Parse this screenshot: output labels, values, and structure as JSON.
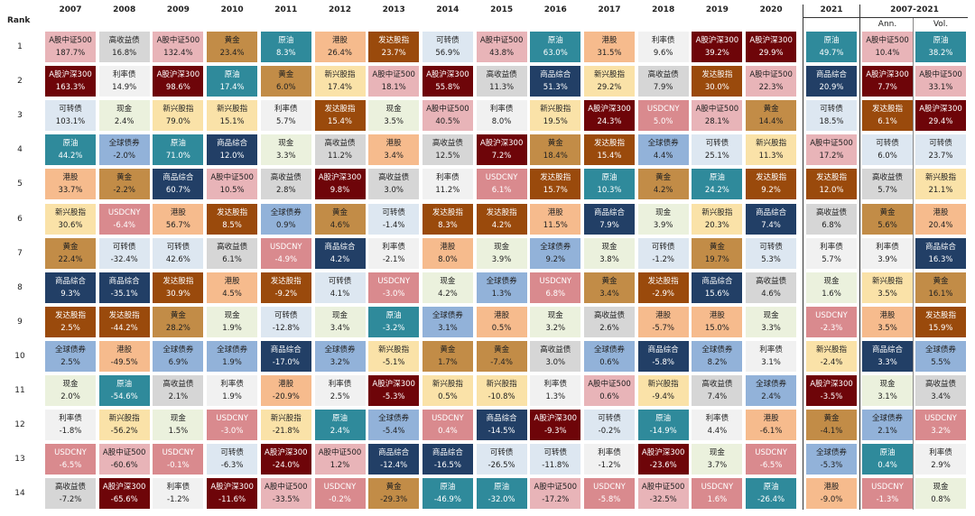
{
  "rank_label": "Rank",
  "group_label": "2007-2021",
  "ranks": [
    "1",
    "2",
    "3",
    "4",
    "5",
    "6",
    "7",
    "8",
    "9",
    "10",
    "11",
    "12",
    "13",
    "14"
  ],
  "colors": {
    "A股中证500": "#e8b4b8",
    "A股沪深300": "#6e0509",
    "可转债": "#dde7f1",
    "原油": "#2f8a9b",
    "港股": "#f6bb8d",
    "新兴股指": "#fae2a8",
    "黄金": "#c28c47",
    "商品综合": "#223f66",
    "发达股指": "#9a4a0c",
    "全球债券": "#92b2d9",
    "现金": "#ebf1dd",
    "利率债": "#f1f1f1",
    "USDCNY": "#d98a8e",
    "高收益债": "#d6d6d6"
  },
  "dark": [
    "A股沪深300",
    "原油",
    "商品综合",
    "发达股指",
    "USDCNY"
  ],
  "table": {
    "columns": [
      {
        "label": "2007",
        "cells": [
          [
            "A股中证500",
            "187.7%"
          ],
          [
            "A股沪深300",
            "163.3%"
          ],
          [
            "可转债",
            "103.1%"
          ],
          [
            "原油",
            "44.2%"
          ],
          [
            "港股",
            "33.7%"
          ],
          [
            "新兴股指",
            "30.6%"
          ],
          [
            "黄金",
            "22.4%"
          ],
          [
            "商品综合",
            "9.3%"
          ],
          [
            "发达股指",
            "2.5%"
          ],
          [
            "全球债券",
            "2.5%"
          ],
          [
            "现金",
            "2.0%"
          ],
          [
            "利率债",
            "-1.8%"
          ],
          [
            "USDCNY",
            "-6.5%"
          ],
          [
            "高收益债",
            "-7.2%"
          ]
        ]
      },
      {
        "label": "2008",
        "cells": [
          [
            "高收益债",
            "16.8%"
          ],
          [
            "利率债",
            "14.9%"
          ],
          [
            "现金",
            "2.4%"
          ],
          [
            "全球债券",
            "-2.0%"
          ],
          [
            "黄金",
            "-2.2%"
          ],
          [
            "USDCNY",
            "-6.4%"
          ],
          [
            "可转债",
            "-32.4%"
          ],
          [
            "商品综合",
            "-35.1%"
          ],
          [
            "发达股指",
            "-44.2%"
          ],
          [
            "港股",
            "-49.5%"
          ],
          [
            "原油",
            "-54.6%"
          ],
          [
            "新兴股指",
            "-56.2%"
          ],
          [
            "A股中证500",
            "-60.6%"
          ],
          [
            "A股沪深300",
            "-65.6%"
          ]
        ]
      },
      {
        "label": "2009",
        "cells": [
          [
            "A股中证500",
            "132.4%"
          ],
          [
            "A股沪深300",
            "98.6%"
          ],
          [
            "新兴股指",
            "79.0%"
          ],
          [
            "原油",
            "71.0%"
          ],
          [
            "商品综合",
            "60.7%"
          ],
          [
            "港股",
            "56.7%"
          ],
          [
            "可转债",
            "42.6%"
          ],
          [
            "发达股指",
            "30.9%"
          ],
          [
            "黄金",
            "28.2%"
          ],
          [
            "全球债券",
            "6.9%"
          ],
          [
            "高收益债",
            "2.1%"
          ],
          [
            "现金",
            "1.5%"
          ],
          [
            "USDCNY",
            "-0.1%"
          ],
          [
            "利率债",
            "-1.2%"
          ]
        ]
      },
      {
        "label": "2010",
        "cells": [
          [
            "黄金",
            "23.4%"
          ],
          [
            "原油",
            "17.4%"
          ],
          [
            "新兴股指",
            "15.1%"
          ],
          [
            "商品综合",
            "12.0%"
          ],
          [
            "A股中证500",
            "10.5%"
          ],
          [
            "发达股指",
            "8.5%"
          ],
          [
            "高收益债",
            "6.1%"
          ],
          [
            "港股",
            "4.5%"
          ],
          [
            "现金",
            "1.9%"
          ],
          [
            "全球债券",
            "1.9%"
          ],
          [
            "利率债",
            "1.9%"
          ],
          [
            "USDCNY",
            "-3.0%"
          ],
          [
            "可转债",
            "-6.3%"
          ],
          [
            "A股沪深300",
            "-11.6%"
          ]
        ]
      },
      {
        "label": "2011",
        "cells": [
          [
            "原油",
            "8.3%"
          ],
          [
            "黄金",
            "6.0%"
          ],
          [
            "利率债",
            "5.7%"
          ],
          [
            "现金",
            "3.3%"
          ],
          [
            "高收益债",
            "2.8%"
          ],
          [
            "全球债券",
            "0.9%"
          ],
          [
            "USDCNY",
            "-4.9%"
          ],
          [
            "发达股指",
            "-9.2%"
          ],
          [
            "可转债",
            "-12.8%"
          ],
          [
            "商品综合",
            "-17.0%"
          ],
          [
            "港股",
            "-20.9%"
          ],
          [
            "新兴股指",
            "-21.8%"
          ],
          [
            "A股沪深300",
            "-24.0%"
          ],
          [
            "A股中证500",
            "-33.5%"
          ]
        ]
      },
      {
        "label": "2012",
        "cells": [
          [
            "港股",
            "26.4%"
          ],
          [
            "新兴股指",
            "17.4%"
          ],
          [
            "发达股指",
            "15.4%"
          ],
          [
            "高收益债",
            "11.2%"
          ],
          [
            "A股沪深300",
            "9.8%"
          ],
          [
            "黄金",
            "4.6%"
          ],
          [
            "商品综合",
            "4.2%"
          ],
          [
            "可转债",
            "4.1%"
          ],
          [
            "现金",
            "3.4%"
          ],
          [
            "全球债券",
            "3.2%"
          ],
          [
            "利率债",
            "2.5%"
          ],
          [
            "原油",
            "2.4%"
          ],
          [
            "A股中证500",
            "1.2%"
          ],
          [
            "USDCNY",
            "-0.2%"
          ]
        ]
      },
      {
        "label": "2013",
        "cells": [
          [
            "发达股指",
            "23.7%"
          ],
          [
            "A股中证500",
            "18.1%"
          ],
          [
            "现金",
            "3.5%"
          ],
          [
            "港股",
            "3.4%"
          ],
          [
            "高收益债",
            "3.0%"
          ],
          [
            "可转债",
            "-1.4%"
          ],
          [
            "利率债",
            "-2.1%"
          ],
          [
            "USDCNY",
            "-3.0%"
          ],
          [
            "原油",
            "-3.2%"
          ],
          [
            "新兴股指",
            "-5.1%"
          ],
          [
            "A股沪深300",
            "-5.3%"
          ],
          [
            "全球债券",
            "-5.4%"
          ],
          [
            "商品综合",
            "-12.4%"
          ],
          [
            "黄金",
            "-29.3%"
          ]
        ]
      },
      {
        "label": "2014",
        "cells": [
          [
            "可转债",
            "56.9%"
          ],
          [
            "A股沪深300",
            "55.8%"
          ],
          [
            "A股中证500",
            "40.5%"
          ],
          [
            "高收益债",
            "12.5%"
          ],
          [
            "利率债",
            "11.2%"
          ],
          [
            "发达股指",
            "8.3%"
          ],
          [
            "港股",
            "8.0%"
          ],
          [
            "现金",
            "4.2%"
          ],
          [
            "全球债券",
            "3.1%"
          ],
          [
            "黄金",
            "1.7%"
          ],
          [
            "新兴股指",
            "0.5%"
          ],
          [
            "USDCNY",
            "0.4%"
          ],
          [
            "商品综合",
            "-16.5%"
          ],
          [
            "原油",
            "-46.9%"
          ]
        ]
      },
      {
        "label": "2015",
        "cells": [
          [
            "A股中证500",
            "43.8%"
          ],
          [
            "高收益债",
            "11.3%"
          ],
          [
            "利率债",
            "8.0%"
          ],
          [
            "A股沪深300",
            "7.2%"
          ],
          [
            "USDCNY",
            "6.1%"
          ],
          [
            "发达股指",
            "4.2%"
          ],
          [
            "现金",
            "3.9%"
          ],
          [
            "全球债券",
            "1.3%"
          ],
          [
            "港股",
            "0.5%"
          ],
          [
            "黄金",
            "-7.4%"
          ],
          [
            "新兴股指",
            "-10.8%"
          ],
          [
            "商品综合",
            "-14.5%"
          ],
          [
            "可转债",
            "-26.5%"
          ],
          [
            "原油",
            "-32.0%"
          ]
        ]
      },
      {
        "label": "2016",
        "cells": [
          [
            "原油",
            "63.0%"
          ],
          [
            "商品综合",
            "51.3%"
          ],
          [
            "新兴股指",
            "19.5%"
          ],
          [
            "黄金",
            "18.4%"
          ],
          [
            "发达股指",
            "15.7%"
          ],
          [
            "港股",
            "11.5%"
          ],
          [
            "全球债券",
            "9.2%"
          ],
          [
            "USDCNY",
            "6.8%"
          ],
          [
            "现金",
            "3.2%"
          ],
          [
            "高收益债",
            "3.0%"
          ],
          [
            "利率债",
            "1.3%"
          ],
          [
            "A股沪深300",
            "-9.3%"
          ],
          [
            "可转债",
            "-11.8%"
          ],
          [
            "A股中证500",
            "-17.2%"
          ]
        ]
      },
      {
        "label": "2017",
        "cells": [
          [
            "港股",
            "31.5%"
          ],
          [
            "新兴股指",
            "29.2%"
          ],
          [
            "A股沪深300",
            "24.3%"
          ],
          [
            "发达股指",
            "15.4%"
          ],
          [
            "原油",
            "10.3%"
          ],
          [
            "商品综合",
            "7.9%"
          ],
          [
            "现金",
            "3.8%"
          ],
          [
            "黄金",
            "3.4%"
          ],
          [
            "高收益债",
            "2.6%"
          ],
          [
            "全球债券",
            "0.6%"
          ],
          [
            "A股中证500",
            "0.6%"
          ],
          [
            "可转债",
            "-0.2%"
          ],
          [
            "利率债",
            "-1.2%"
          ],
          [
            "USDCNY",
            "-5.8%"
          ]
        ]
      },
      {
        "label": "2018",
        "cells": [
          [
            "利率债",
            "9.6%"
          ],
          [
            "高收益债",
            "7.9%"
          ],
          [
            "USDCNY",
            "5.0%"
          ],
          [
            "全球债券",
            "4.4%"
          ],
          [
            "黄金",
            "4.2%"
          ],
          [
            "现金",
            "3.9%"
          ],
          [
            "可转债",
            "-1.2%"
          ],
          [
            "发达股指",
            "-2.9%"
          ],
          [
            "港股",
            "-5.7%"
          ],
          [
            "商品综合",
            "-5.8%"
          ],
          [
            "新兴股指",
            "-9.4%"
          ],
          [
            "原油",
            "-14.9%"
          ],
          [
            "A股沪深300",
            "-23.6%"
          ],
          [
            "A股中证500",
            "-32.5%"
          ]
        ]
      },
      {
        "label": "2019",
        "cells": [
          [
            "A股沪深300",
            "39.2%"
          ],
          [
            "发达股指",
            "30.0%"
          ],
          [
            "A股中证500",
            "28.1%"
          ],
          [
            "可转债",
            "25.1%"
          ],
          [
            "原油",
            "24.2%"
          ],
          [
            "新兴股指",
            "20.3%"
          ],
          [
            "黄金",
            "19.7%"
          ],
          [
            "商品综合",
            "15.6%"
          ],
          [
            "港股",
            "15.0%"
          ],
          [
            "全球债券",
            "8.2%"
          ],
          [
            "高收益债",
            "7.4%"
          ],
          [
            "利率债",
            "4.4%"
          ],
          [
            "现金",
            "3.7%"
          ],
          [
            "USDCNY",
            "1.6%"
          ]
        ]
      },
      {
        "label": "2020",
        "cells": [
          [
            "A股沪深300",
            "29.9%"
          ],
          [
            "A股中证500",
            "22.3%"
          ],
          [
            "黄金",
            "14.4%"
          ],
          [
            "新兴股指",
            "11.3%"
          ],
          [
            "发达股指",
            "9.2%"
          ],
          [
            "商品综合",
            "7.4%"
          ],
          [
            "可转债",
            "5.3%"
          ],
          [
            "高收益债",
            "4.6%"
          ],
          [
            "现金",
            "3.3%"
          ],
          [
            "利率债",
            "3.1%"
          ],
          [
            "全球债券",
            "2.4%"
          ],
          [
            "港股",
            "-6.1%"
          ],
          [
            "USDCNY",
            "-6.5%"
          ],
          [
            "原油",
            "-26.4%"
          ]
        ]
      },
      {
        "label": "2021",
        "cells": [
          [
            "原油",
            "49.7%"
          ],
          [
            "商品综合",
            "20.9%"
          ],
          [
            "可转债",
            "18.5%"
          ],
          [
            "A股中证500",
            "17.2%"
          ],
          [
            "发达股指",
            "12.0%"
          ],
          [
            "高收益债",
            "6.8%"
          ],
          [
            "利率债",
            "5.7%"
          ],
          [
            "现金",
            "1.6%"
          ],
          [
            "USDCNY",
            "-2.3%"
          ],
          [
            "新兴股指",
            "-2.4%"
          ],
          [
            "A股沪深300",
            "-3.5%"
          ],
          [
            "黄金",
            "-4.1%"
          ],
          [
            "全球债券",
            "-5.3%"
          ],
          [
            "港股",
            "-9.0%"
          ]
        ]
      },
      {
        "label": "Ann.",
        "cells": [
          [
            "A股中证500",
            "10.4%"
          ],
          [
            "A股沪深300",
            "7.7%"
          ],
          [
            "发达股指",
            "6.1%"
          ],
          [
            "可转债",
            "6.0%"
          ],
          [
            "高收益债",
            "5.7%"
          ],
          [
            "黄金",
            "5.6%"
          ],
          [
            "利率债",
            "3.9%"
          ],
          [
            "新兴股指",
            "3.5%"
          ],
          [
            "港股",
            "3.5%"
          ],
          [
            "商品综合",
            "3.3%"
          ],
          [
            "现金",
            "3.1%"
          ],
          [
            "全球债券",
            "2.1%"
          ],
          [
            "原油",
            "0.4%"
          ],
          [
            "USDCNY",
            "-1.3%"
          ]
        ]
      },
      {
        "label": "Vol.",
        "cells": [
          [
            "原油",
            "38.2%"
          ],
          [
            "A股中证500",
            "33.1%"
          ],
          [
            "A股沪深300",
            "29.4%"
          ],
          [
            "可转债",
            "23.7%"
          ],
          [
            "新兴股指",
            "21.1%"
          ],
          [
            "港股",
            "20.4%"
          ],
          [
            "商品综合",
            "16.3%"
          ],
          [
            "黄金",
            "16.1%"
          ],
          [
            "发达股指",
            "15.9%"
          ],
          [
            "全球债券",
            "5.5%"
          ],
          [
            "高收益债",
            "3.4%"
          ],
          [
            "USDCNY",
            "3.2%"
          ],
          [
            "利率债",
            "2.9%"
          ],
          [
            "现金",
            "0.8%"
          ]
        ]
      }
    ]
  }
}
